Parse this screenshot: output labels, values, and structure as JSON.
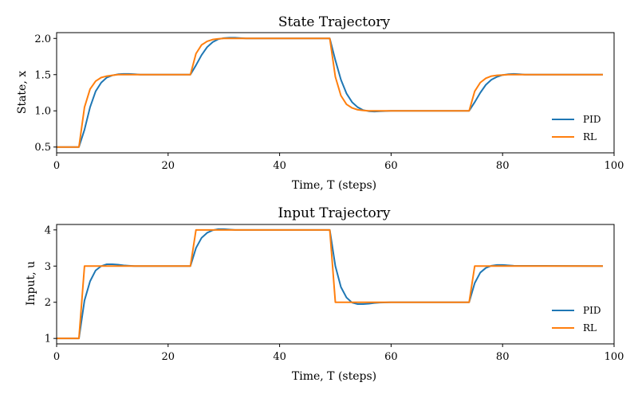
{
  "chart_data": [
    {
      "type": "line",
      "title": "State Trajectory",
      "xlabel": "Time, T (steps)",
      "ylabel": "State, x",
      "xlim": [
        0,
        100
      ],
      "ylim": [
        0.42,
        2.08
      ],
      "xticks": [
        0,
        20,
        40,
        60,
        80,
        100
      ],
      "yticks": [
        0.5,
        1.0,
        1.5,
        2.0
      ],
      "ytick_labels": [
        "0.5",
        "1.0",
        "1.5",
        "2.0"
      ],
      "grid": false,
      "legend": "lower-right",
      "series": [
        {
          "name": "PID",
          "color": "#1f77b4",
          "x": [
            0,
            4,
            5,
            6,
            7,
            8,
            9,
            10,
            11,
            12,
            13,
            14,
            15,
            16,
            20,
            24,
            25,
            26,
            27,
            28,
            29,
            30,
            31,
            32,
            33,
            34,
            40,
            49,
            50,
            51,
            52,
            53,
            54,
            55,
            56,
            57,
            58,
            60,
            74,
            75,
            76,
            77,
            78,
            79,
            80,
            81,
            82,
            83,
            84,
            98
          ],
          "y": [
            0.5,
            0.5,
            0.74,
            1.05,
            1.27,
            1.39,
            1.46,
            1.49,
            1.505,
            1.51,
            1.51,
            1.505,
            1.5,
            1.5,
            1.5,
            1.5,
            1.63,
            1.77,
            1.88,
            1.95,
            1.99,
            2.005,
            2.01,
            2.01,
            2.005,
            2.0,
            2.0,
            2.0,
            1.7,
            1.43,
            1.24,
            1.12,
            1.05,
            1.01,
            0.995,
            0.99,
            0.995,
            1.0,
            1.0,
            1.12,
            1.25,
            1.36,
            1.43,
            1.47,
            1.495,
            1.505,
            1.51,
            1.505,
            1.5,
            1.5
          ]
        },
        {
          "name": "RL",
          "color": "#ff7f0e",
          "x": [
            0,
            4,
            5,
            6,
            7,
            8,
            9,
            10,
            11,
            12,
            13,
            20,
            24,
            25,
            26,
            27,
            28,
            29,
            30,
            31,
            40,
            49,
            50,
            51,
            52,
            53,
            54,
            55,
            56,
            57,
            60,
            74,
            75,
            76,
            77,
            78,
            79,
            80,
            81,
            82,
            98
          ],
          "y": [
            0.5,
            0.5,
            1.05,
            1.3,
            1.41,
            1.46,
            1.48,
            1.49,
            1.5,
            1.5,
            1.5,
            1.5,
            1.5,
            1.79,
            1.91,
            1.96,
            1.985,
            1.995,
            2.0,
            2.0,
            2.0,
            2.0,
            1.47,
            1.21,
            1.09,
            1.04,
            1.015,
            1.005,
            1.0,
            1.0,
            1.0,
            1.0,
            1.27,
            1.39,
            1.45,
            1.48,
            1.49,
            1.495,
            1.5,
            1.5,
            1.5
          ]
        }
      ]
    },
    {
      "type": "line",
      "title": "Input Trajectory",
      "xlabel": "Time, T (steps)",
      "ylabel": "Input, u",
      "xlim": [
        0,
        100
      ],
      "ylim": [
        0.85,
        4.15
      ],
      "xticks": [
        0,
        20,
        40,
        60,
        80,
        100
      ],
      "yticks": [
        1,
        2,
        3,
        4
      ],
      "ytick_labels": [
        "1",
        "2",
        "3",
        "4"
      ],
      "grid": false,
      "legend": "lower-right",
      "series": [
        {
          "name": "PID",
          "color": "#1f77b4",
          "x": [
            0,
            4,
            5,
            6,
            7,
            8,
            9,
            10,
            11,
            12,
            13,
            14,
            15,
            20,
            24,
            25,
            26,
            27,
            28,
            29,
            30,
            31,
            32,
            33,
            34,
            40,
            49,
            50,
            51,
            52,
            53,
            54,
            55,
            56,
            57,
            58,
            60,
            74,
            75,
            76,
            77,
            78,
            79,
            80,
            81,
            82,
            98
          ],
          "y": [
            1,
            1,
            2.05,
            2.58,
            2.88,
            3.0,
            3.05,
            3.05,
            3.04,
            3.02,
            3.01,
            3.0,
            3.0,
            3.0,
            3.0,
            3.5,
            3.78,
            3.92,
            3.99,
            4.02,
            4.02,
            4.01,
            4.0,
            4.0,
            4.0,
            4.0,
            4.0,
            3.0,
            2.42,
            2.13,
            1.99,
            1.95,
            1.95,
            1.96,
            1.98,
            1.99,
            2.0,
            2.0,
            2.53,
            2.82,
            2.95,
            3.01,
            3.03,
            3.03,
            3.02,
            3.01,
            3.0
          ]
        },
        {
          "name": "RL",
          "color": "#ff7f0e",
          "x": [
            0,
            4,
            5,
            24,
            25,
            49,
            50,
            74,
            75,
            98
          ],
          "y": [
            1,
            1,
            3,
            3,
            4,
            4,
            2,
            2,
            3,
            3
          ]
        }
      ]
    }
  ]
}
